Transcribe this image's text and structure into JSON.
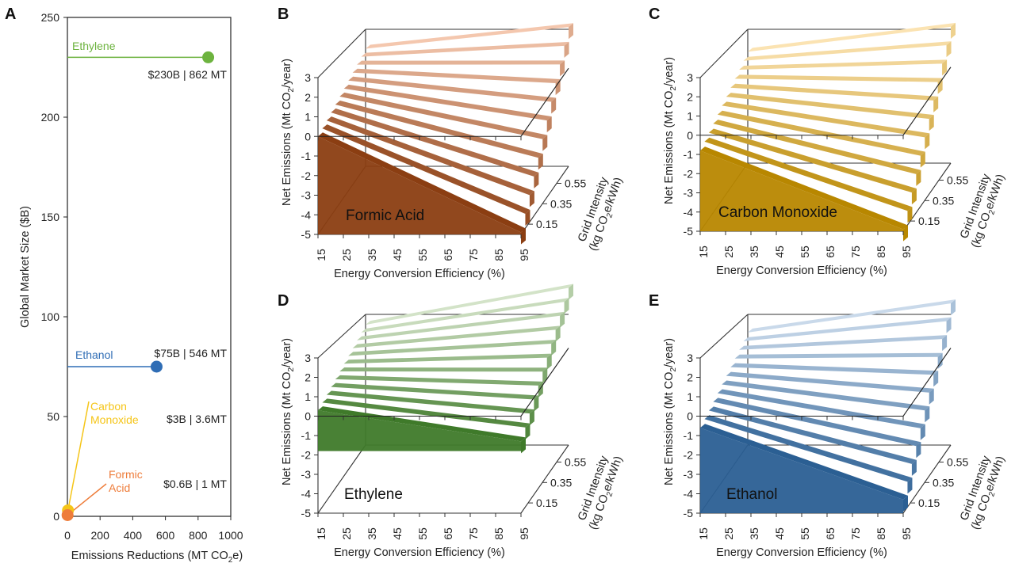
{
  "figure": {
    "panels": {
      "a": "A",
      "b": "B",
      "c": "C",
      "d": "D",
      "e": "E"
    }
  },
  "chart_data": [
    {
      "id": "A",
      "type": "scatter",
      "title": "",
      "xlabel": "Emissions Reductions (MT CO",
      "xlabel_sub": "2",
      "xlabel_tail": "e)",
      "ylabel": "Global Market Size ($B)",
      "xlim": [
        0,
        1000
      ],
      "ylim": [
        0,
        250
      ],
      "xticks": [
        "0",
        "200",
        "400",
        "600",
        "800",
        "1000"
      ],
      "yticks": [
        "0",
        "50",
        "100",
        "150",
        "200",
        "250"
      ],
      "points": [
        {
          "name": "Ethylene",
          "x": 862,
          "y": 230,
          "color": "#6db33f",
          "value_label": "$230B | 862 MT"
        },
        {
          "name": "Ethanol",
          "x": 546,
          "y": 75,
          "color": "#2f6db5",
          "value_label": "$75B | 546 MT"
        },
        {
          "name": "Carbon Monoxide",
          "x": 3.6,
          "y": 3,
          "color": "#f5c518",
          "value_label": "$3B | 3.6MT"
        },
        {
          "name": "Formic Acid",
          "x": 1,
          "y": 0.6,
          "color": "#ee7d3b",
          "value_label": "$0.6B | 1 MT"
        }
      ],
      "labels": {
        "ethylene": "Ethylene",
        "ethanol": "Ethanol",
        "co_1": "Carbon",
        "co_2": "Monoxide",
        "fa_1": "Formic",
        "fa_2": "Acid"
      }
    },
    {
      "id": "B",
      "type": "surface3d",
      "product": "Formic Acid",
      "zlabel": "Net Emissions (Mt CO",
      "zlabel_sub": "2",
      "zlabel_tail": "/year)",
      "xlabel": "Energy Conversion Efficiency (%)",
      "ylabel_line1": "Grid Intensity",
      "ylabel_line2_pre": "(kg CO",
      "ylabel_line2_sub": "2",
      "ylabel_line2_tail": "e/kWh)",
      "zticks": [
        "3",
        "2",
        "1",
        "0",
        "-1",
        "-2",
        "-3",
        "-4",
        "-5"
      ],
      "xticks": [
        "15",
        "25",
        "35",
        "45",
        "55",
        "65",
        "75",
        "85",
        "95"
      ],
      "yticks": [
        "0.55",
        "0.35",
        "0.15"
      ],
      "zlim": [
        -5,
        3
      ],
      "color_dark": "#8b3e12",
      "color_light": "#f4c7ae"
    },
    {
      "id": "C",
      "type": "surface3d",
      "product": "Carbon Monoxide",
      "zlabel": "Net Emissions (Mt CO",
      "zlabel_sub": "2",
      "zlabel_tail": "/year)",
      "xlabel": "Energy Conversion Efficiency (%)",
      "ylabel_line1": "Grid Intensity",
      "ylabel_line2_pre": "(kg CO",
      "ylabel_line2_sub": "2",
      "ylabel_line2_tail": "e/kWh)",
      "zticks": [
        "3",
        "2",
        "1",
        "0",
        "-1",
        "-2",
        "-3",
        "-4",
        "-5"
      ],
      "xticks": [
        "15",
        "25",
        "35",
        "45",
        "55",
        "65",
        "75",
        "85",
        "95"
      ],
      "yticks": [
        "0.55",
        "0.35",
        "0.15"
      ],
      "zlim": [
        -5,
        3
      ],
      "color_dark": "#b88700",
      "color_light": "#fbe3b2"
    },
    {
      "id": "D",
      "type": "surface3d",
      "product": "Ethylene",
      "zlabel": "Net Emissions (Mt CO",
      "zlabel_sub": "2",
      "zlabel_tail": "/year)",
      "xlabel": "Energy Conversion Efficiency (%)",
      "ylabel_line1": "Grid Intensity",
      "ylabel_line2_pre": "(kg CO",
      "ylabel_line2_sub": "2",
      "ylabel_line2_tail": "e/kWh)",
      "zticks": [
        "3",
        "2",
        "1",
        "0",
        "-1",
        "-2",
        "-3",
        "-4",
        "-5"
      ],
      "xticks": [
        "15",
        "25",
        "35",
        "45",
        "55",
        "65",
        "75",
        "85",
        "95"
      ],
      "yticks": [
        "0.55",
        "0.35",
        "0.15"
      ],
      "zlim": [
        -5,
        3
      ],
      "color_dark": "#3f7a2a",
      "color_light": "#d3e3c8"
    },
    {
      "id": "E",
      "type": "surface3d",
      "product": "Ethanol",
      "zlabel": "Net Emissions (Mt CO",
      "zlabel_sub": "2",
      "zlabel_tail": "/year)",
      "xlabel": "Energy Conversion Efficiency (%)",
      "ylabel_line1": "Grid Intensity",
      "ylabel_line2_pre": "(kg CO",
      "ylabel_line2_sub": "2",
      "ylabel_line2_tail": "e/kWh)",
      "zticks": [
        "3",
        "2",
        "1",
        "0",
        "-1",
        "-2",
        "-3",
        "-4",
        "-5"
      ],
      "xticks": [
        "15",
        "25",
        "35",
        "45",
        "55",
        "65",
        "75",
        "85",
        "95"
      ],
      "yticks": [
        "0.55",
        "0.35",
        "0.15"
      ],
      "zlim": [
        -5,
        3
      ],
      "color_dark": "#2b5f93",
      "color_light": "#c9d9ea"
    }
  ]
}
